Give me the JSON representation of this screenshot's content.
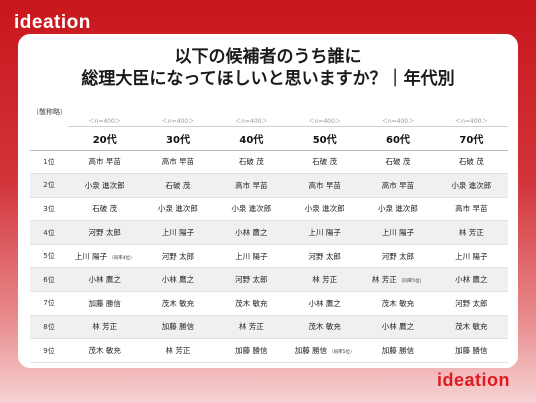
{
  "brand": {
    "logo_text": "ideation"
  },
  "title": {
    "line1": "以下の候補者のうち誰に",
    "line2": "総理大臣になってほしいと思いますか？｜年代別"
  },
  "table": {
    "abbrev_note": "（敬称略）",
    "n_labels": [
      "＜n=400＞",
      "＜n=400＞",
      "＜n=400＞",
      "＜n=400＞",
      "＜n=400＞",
      "＜n=400＞"
    ],
    "columns": [
      "20代",
      "30代",
      "40代",
      "50代",
      "60代",
      "70代"
    ],
    "rows": [
      {
        "rank": "1位",
        "cells": [
          {
            "name": "高市 早苗"
          },
          {
            "name": "高市 早苗"
          },
          {
            "name": "石破 茂"
          },
          {
            "name": "石破 茂"
          },
          {
            "name": "石破 茂"
          },
          {
            "name": "石破 茂"
          }
        ]
      },
      {
        "rank": "2位",
        "cells": [
          {
            "name": "小泉 進次郎"
          },
          {
            "name": "石破 茂"
          },
          {
            "name": "高市 早苗"
          },
          {
            "name": "高市 早苗"
          },
          {
            "name": "高市 早苗"
          },
          {
            "name": "小泉 進次郎"
          }
        ]
      },
      {
        "rank": "3位",
        "cells": [
          {
            "name": "石破 茂"
          },
          {
            "name": "小泉 進次郎"
          },
          {
            "name": "小泉 進次郎"
          },
          {
            "name": "小泉 進次郎"
          },
          {
            "name": "小泉 進次郎"
          },
          {
            "name": "高市 早苗"
          }
        ]
      },
      {
        "rank": "4位",
        "cells": [
          {
            "name": "河野 太郎"
          },
          {
            "name": "上川 陽子"
          },
          {
            "name": "小林 鷹之"
          },
          {
            "name": "上川 陽子"
          },
          {
            "name": "上川 陽子"
          },
          {
            "name": "林 芳正"
          }
        ]
      },
      {
        "rank": "5位",
        "cells": [
          {
            "name": "上川 陽子",
            "note": "（同率4位）"
          },
          {
            "name": "河野 太郎"
          },
          {
            "name": "上川 陽子"
          },
          {
            "name": "河野 太郎"
          },
          {
            "name": "河野 太郎"
          },
          {
            "name": "上川 陽子"
          }
        ]
      },
      {
        "rank": "6位",
        "cells": [
          {
            "name": "小林 鷹之"
          },
          {
            "name": "小林 鷹之"
          },
          {
            "name": "河野 太郎"
          },
          {
            "name": "林 芳正"
          },
          {
            "name": "林 芳正",
            "note": "（同率5位）"
          },
          {
            "name": "小林 鷹之"
          }
        ]
      },
      {
        "rank": "7位",
        "cells": [
          {
            "name": "加藤 勝信"
          },
          {
            "name": "茂木 敏充"
          },
          {
            "name": "茂木 敏充"
          },
          {
            "name": "小林 鷹之"
          },
          {
            "name": "茂木 敏充"
          },
          {
            "name": "河野 太郎"
          }
        ]
      },
      {
        "rank": "8位",
        "cells": [
          {
            "name": "林 芳正"
          },
          {
            "name": "加藤 勝信"
          },
          {
            "name": "林 芳正"
          },
          {
            "name": "茂木 敏充"
          },
          {
            "name": "小林 鷹之"
          },
          {
            "name": "茂木 敏充"
          }
        ]
      },
      {
        "rank": "9位",
        "cells": [
          {
            "name": "茂木 敏充"
          },
          {
            "name": "林 芳正"
          },
          {
            "name": "加藤 勝信"
          },
          {
            "name": "加藤 勝信",
            "note": "（同率5位）"
          },
          {
            "name": "加藤 勝信"
          },
          {
            "name": "加藤 勝信"
          }
        ]
      }
    ]
  }
}
